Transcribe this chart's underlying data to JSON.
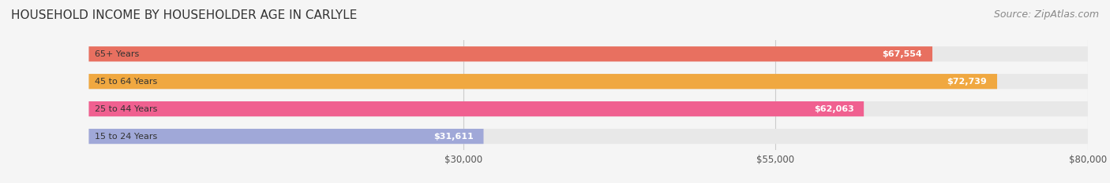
{
  "title": "HOUSEHOLD INCOME BY HOUSEHOLDER AGE IN CARLYLE",
  "source": "Source: ZipAtlas.com",
  "categories": [
    "15 to 24 Years",
    "25 to 44 Years",
    "45 to 64 Years",
    "65+ Years"
  ],
  "values": [
    31611,
    62063,
    72739,
    67554
  ],
  "bar_colors": [
    "#a0a8d8",
    "#f06090",
    "#f0a840",
    "#e87060"
  ],
  "bar_bg_color": "#e8e8e8",
  "label_colors": [
    "#606090",
    "#c04060",
    "#c07020",
    "#b04040"
  ],
  "value_labels": [
    "$31,611",
    "$62,063",
    "$72,739",
    "$67,554"
  ],
  "tick_labels": [
    "$30,000",
    "$55,000",
    "$80,000"
  ],
  "tick_values": [
    30000,
    55000,
    80000
  ],
  "xmin": 0,
  "xmax": 80000,
  "background_color": "#f5f5f5",
  "bar_bg": "#e0e0e0",
  "title_fontsize": 11,
  "source_fontsize": 9
}
